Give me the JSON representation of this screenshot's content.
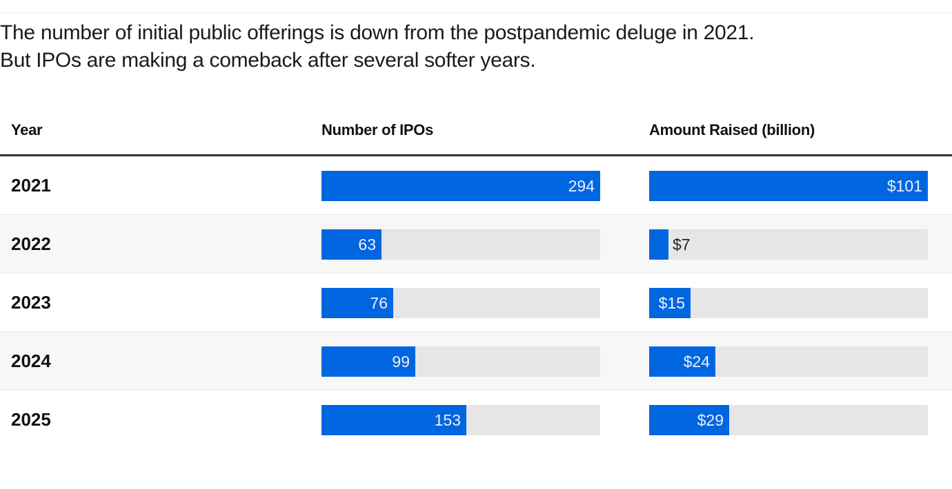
{
  "subtitle": {
    "line1": "The number of initial public offerings is down from the postpandemic deluge in 2021.",
    "line2": "But IPOs are making a comeback after several softer years."
  },
  "colors": {
    "bar": "#0066e0",
    "track": "#e6e6e6",
    "alt_row": "#f7f7f7"
  },
  "chart_data": {
    "type": "table",
    "title": "The number of initial public offerings is down from the postpandemic deluge in 2021. But IPOs are making a comeback after several softer years.",
    "columns": [
      "Year",
      "Number of IPOs",
      "Amount Raised (billion)"
    ],
    "rows": [
      {
        "year": "2021",
        "ipos": 294,
        "ipos_label": "294",
        "amount": 101,
        "amount_label": "$101"
      },
      {
        "year": "2022",
        "ipos": 63,
        "ipos_label": "63",
        "amount": 7,
        "amount_label": "$7"
      },
      {
        "year": "2023",
        "ipos": 76,
        "ipos_label": "76",
        "amount": 15,
        "amount_label": "$15"
      },
      {
        "year": "2024",
        "ipos": 99,
        "ipos_label": "99",
        "amount": 24,
        "amount_label": "$24"
      },
      {
        "year": "2025",
        "ipos": 153,
        "ipos_label": "153",
        "amount": 29,
        "amount_label": "$29"
      }
    ],
    "ipos_max": 294,
    "amount_max": 101
  }
}
